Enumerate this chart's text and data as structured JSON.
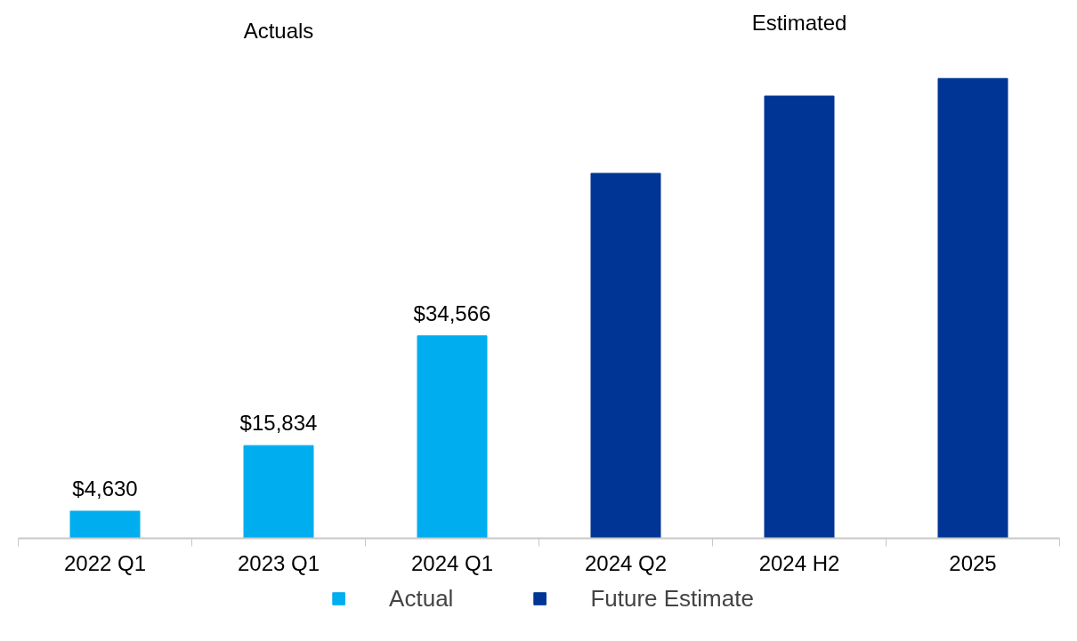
{
  "chart_data": {
    "type": "bar",
    "categories": [
      "2022 Q1",
      "2023 Q1",
      "2024 Q1",
      "2024 Q2",
      "2024 H2",
      "2025"
    ],
    "series": [
      {
        "name": "Actual",
        "color": "#00adef",
        "values": [
          4630,
          15834,
          34566,
          null,
          null,
          null
        ],
        "value_labels": [
          "$4,630",
          "$15,834",
          "$34,566",
          null,
          null,
          null
        ]
      },
      {
        "name": "Future Estimate",
        "color": "#003595",
        "values": [
          null,
          null,
          null,
          62300,
          75500,
          78500
        ]
      }
    ],
    "annotations": [
      "Actuals",
      "Estimated"
    ],
    "legend": "bottom",
    "grid": false
  }
}
